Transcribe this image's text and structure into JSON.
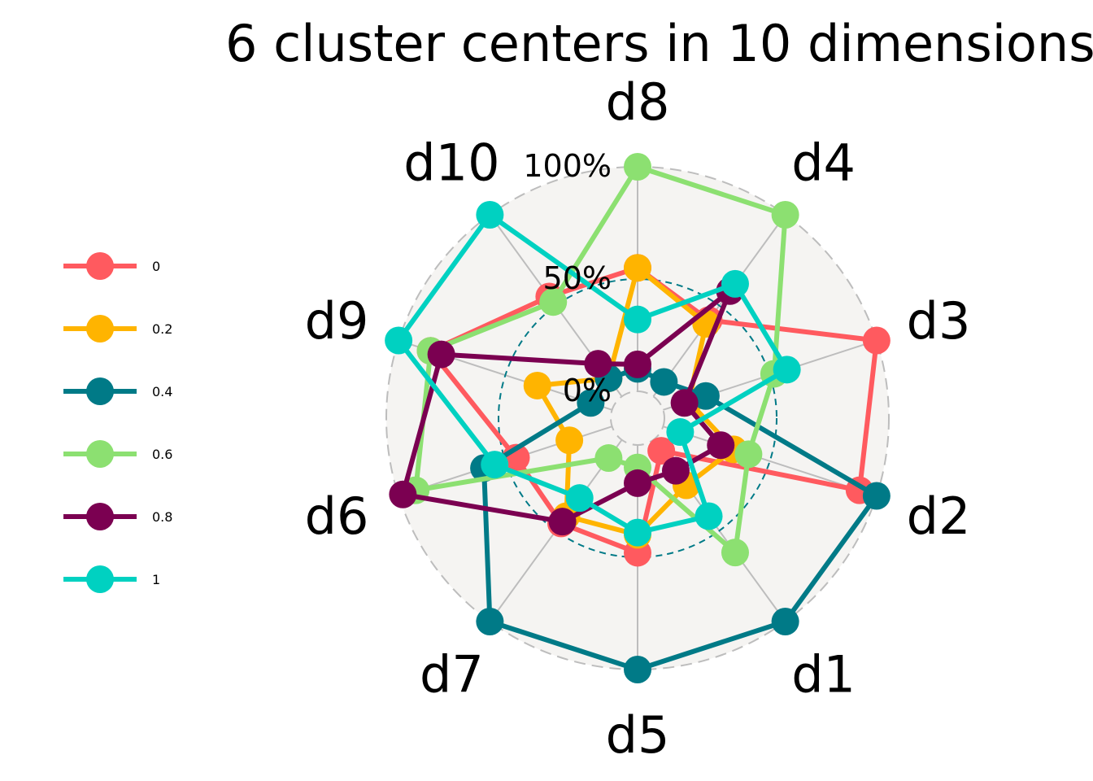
{
  "chart_data": {
    "type": "radar",
    "title": "6 cluster centers in 10 dimensions",
    "axes": [
      "d1",
      "d2",
      "d3",
      "d4",
      "d5",
      "d6",
      "d7",
      "d8",
      "d9",
      "d10"
    ],
    "radial_ticks": [
      "0%",
      "50%",
      "100%"
    ],
    "ylim": [
      0,
      1
    ],
    "legend_placement": "left",
    "background_color": "#F5F4F2",
    "series": [
      {
        "name": "0",
        "color": "#FF5A5F",
        "values": [
          0.06,
          0.92,
          1.0,
          0.42,
          0.48,
          0.45,
          0.46,
          0.55,
          0.85,
          0.55
        ]
      },
      {
        "name": "0.2",
        "color": "#FFB400",
        "values": [
          0.25,
          0.33,
          0.12,
          0.4,
          0.4,
          0.2,
          0.42,
          0.55,
          0.35,
          0.1
        ]
      },
      {
        "name": "0.4",
        "color": "#007A87",
        "values": [
          1.0,
          1.0,
          0.2,
          0.08,
          1.0,
          0.6,
          1.0,
          0.1,
          0.1,
          0.1
        ]
      },
      {
        "name": "0.6",
        "color": "#8CE071",
        "values": [
          0.62,
          0.4,
          0.52,
          1.0,
          0.1,
          0.92,
          0.1,
          1.0,
          0.85,
          0.52
        ]
      },
      {
        "name": "0.8",
        "color": "#7B0051",
        "values": [
          0.17,
          0.27,
          0.1,
          0.58,
          0.17,
          0.98,
          0.45,
          0.12,
          0.8,
          0.18
        ]
      },
      {
        "name": "1",
        "color": "#00D1C1",
        "values": [
          0.42,
          0.08,
          0.58,
          0.62,
          0.39,
          0.55,
          0.32,
          0.32,
          1.0,
          1.0
        ]
      }
    ]
  }
}
